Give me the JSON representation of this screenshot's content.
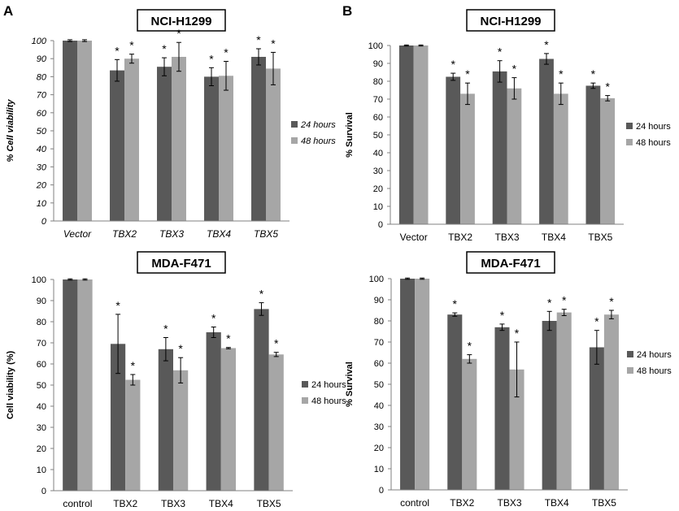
{
  "panel_labels": [
    "A",
    "B"
  ],
  "chart_data": [
    {
      "type": "bar",
      "title": "NCI-H1299",
      "xlabel": "",
      "ylabel": "% Cell viability",
      "ylim": [
        0,
        100
      ],
      "yticks": [
        0,
        10,
        20,
        30,
        40,
        50,
        60,
        70,
        80,
        90,
        100
      ],
      "italic": true,
      "categories": [
        "Vector",
        "TBX2",
        "TBX3",
        "TBX4",
        "TBX5"
      ],
      "series": [
        {
          "name": "24 hours",
          "color": "#595959",
          "values": [
            100,
            83.5,
            85.5,
            80,
            91
          ],
          "errors": [
            0.5,
            6,
            5,
            5,
            4.5
          ],
          "significant": [
            false,
            true,
            true,
            true,
            true
          ]
        },
        {
          "name": "48 hours",
          "color": "#a6a6a6",
          "values": [
            100,
            90,
            91,
            80.5,
            84.5
          ],
          "errors": [
            0.5,
            2.5,
            8,
            8,
            9
          ],
          "significant": [
            false,
            true,
            true,
            true,
            true
          ]
        }
      ],
      "legend": "right",
      "significance_marker": "*"
    },
    {
      "type": "bar",
      "title": "NCI-H1299",
      "xlabel": "",
      "ylabel": "% Survival",
      "ylim": [
        0,
        100
      ],
      "yticks": [
        0,
        10,
        20,
        30,
        40,
        50,
        60,
        70,
        80,
        90,
        100
      ],
      "italic": false,
      "categories": [
        "Vector",
        "TBX2",
        "TBX3",
        "TBX4",
        "TBX5"
      ],
      "series": [
        {
          "name": "24 hours",
          "color": "#595959",
          "values": [
            100,
            82.5,
            85.5,
            92.5,
            77.5
          ],
          "errors": [
            0.3,
            2,
            6,
            3,
            1.5
          ],
          "significant": [
            false,
            true,
            true,
            true,
            true
          ]
        },
        {
          "name": "48 hours",
          "color": "#a6a6a6",
          "values": [
            100,
            73,
            76,
            73,
            70.5
          ],
          "errors": [
            0.3,
            6,
            6,
            6,
            1.5
          ],
          "significant": [
            false,
            true,
            true,
            true,
            true
          ]
        }
      ],
      "legend": "right",
      "significance_marker": "*"
    },
    {
      "type": "bar",
      "title": "MDA-F471",
      "xlabel": "",
      "ylabel": "Cell viability (%)",
      "ylim": [
        0,
        100
      ],
      "yticks": [
        0,
        10,
        20,
        30,
        40,
        50,
        60,
        70,
        80,
        90,
        100
      ],
      "italic": false,
      "categories": [
        "control",
        "TBX2",
        "TBX3",
        "TBX4",
        "TBX5"
      ],
      "series": [
        {
          "name": "24 hours",
          "color": "#595959",
          "values": [
            100,
            69.5,
            67,
            75,
            86
          ],
          "errors": [
            0.3,
            14,
            5.5,
            2.5,
            3
          ],
          "significant": [
            false,
            true,
            true,
            true,
            true
          ]
        },
        {
          "name": "48 hours",
          "color": "#a6a6a6",
          "values": [
            100,
            52.5,
            57,
            67.5,
            64.5
          ],
          "errors": [
            0.3,
            2.5,
            6,
            0.3,
            1
          ],
          "significant": [
            false,
            true,
            true,
            true,
            true
          ]
        }
      ],
      "legend": "right",
      "significance_marker": "*"
    },
    {
      "type": "bar",
      "title": "MDA-F471",
      "xlabel": "",
      "ylabel": "% Survival",
      "ylim": [
        0,
        100
      ],
      "yticks": [
        0,
        10,
        20,
        30,
        40,
        50,
        60,
        70,
        80,
        90,
        100
      ],
      "italic": false,
      "categories": [
        "control",
        "TBX2",
        "TBX3",
        "TBX4",
        "TBX5"
      ],
      "series": [
        {
          "name": "24 hours",
          "color": "#595959",
          "values": [
            100,
            83,
            77,
            80,
            67.5
          ],
          "errors": [
            0.3,
            0.8,
            1.5,
            4.5,
            8
          ],
          "significant": [
            false,
            true,
            true,
            true,
            true
          ]
        },
        {
          "name": "48 hours",
          "color": "#a6a6a6",
          "values": [
            100,
            62,
            57,
            84,
            83
          ],
          "errors": [
            0.3,
            2,
            13,
            1.5,
            2
          ],
          "significant": [
            false,
            true,
            true,
            true,
            true
          ]
        }
      ],
      "legend": "right",
      "significance_marker": "*"
    }
  ]
}
